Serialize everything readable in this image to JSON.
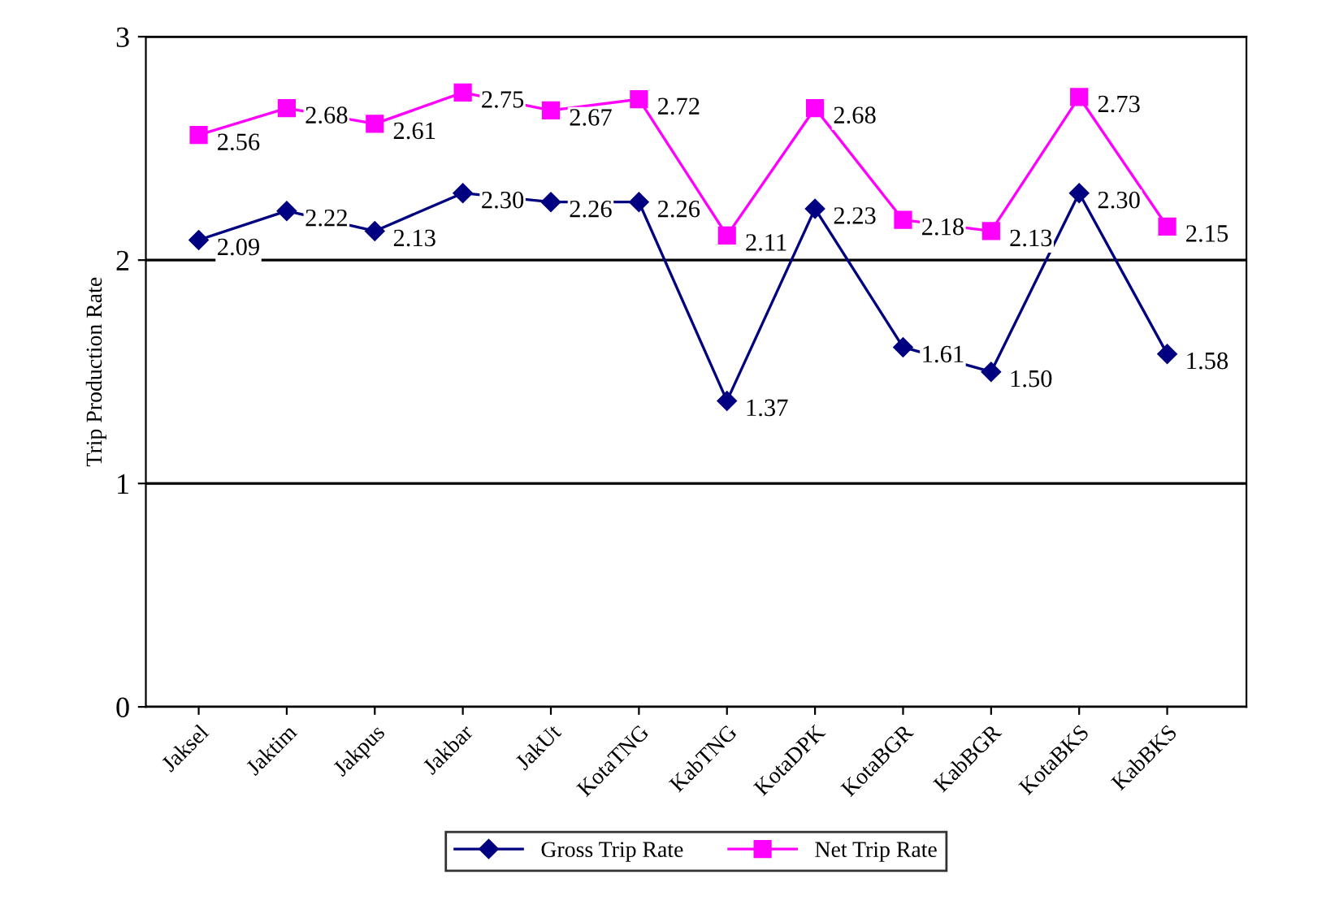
{
  "chart_data": {
    "type": "line",
    "ylabel": "Trip Production Rate",
    "categories": [
      "Jaksel",
      "Jaktim",
      "Jakpus",
      "Jakbar",
      "JakUt",
      "KotaTNG",
      "KabTNG",
      "KotaDPK",
      "KotaBGR",
      "KabBGR",
      "KotaBKS",
      "KabBKS"
    ],
    "series": [
      {
        "name": "Gross Trip Rate",
        "color": "#000080",
        "marker": "diamond",
        "values": [
          2.09,
          2.22,
          2.13,
          2.3,
          2.26,
          2.26,
          1.37,
          2.23,
          1.61,
          1.5,
          2.3,
          1.58
        ],
        "value_labels": [
          "2.09",
          "2.22",
          "2.13",
          "2.30",
          "2.26",
          "2.26",
          "1.37",
          "2.23",
          "1.61",
          "1.50",
          "2.30",
          "1.58"
        ]
      },
      {
        "name": "Net Trip Rate",
        "color": "#ff00ff",
        "marker": "square",
        "values": [
          2.56,
          2.68,
          2.61,
          2.75,
          2.67,
          2.72,
          2.11,
          2.68,
          2.18,
          2.13,
          2.73,
          2.15
        ],
        "value_labels": [
          "2.56",
          "2.68",
          "2.61",
          "2.75",
          "2.67",
          "2.72",
          "2.11",
          "2.68",
          "2.18",
          "2.13",
          "2.73",
          "2.15"
        ]
      }
    ],
    "ylim": [
      0,
      3
    ],
    "yticks": [
      0,
      1,
      2,
      3
    ],
    "grid": "y",
    "legend": "bottom"
  }
}
